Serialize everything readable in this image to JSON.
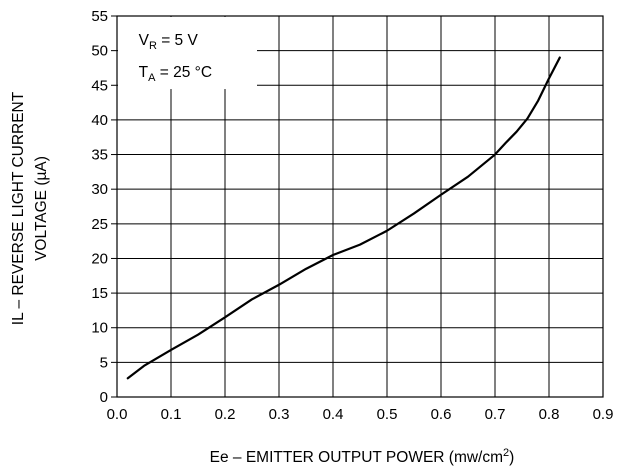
{
  "chart_data": {
    "type": "line",
    "xlabel": "Ee – EMITTER OUTPUT POWER (mw/cm",
    "xlabel_sup": "2",
    "xlabel_end": ")",
    "ylabel_line1": "IL – REVERSE LIGHT CURRENT",
    "ylabel_line2": "VOLTAGE (µA)",
    "xlim": [
      0,
      0.9
    ],
    "ylim": [
      0,
      55
    ],
    "x_ticks": [
      {
        "value": 0.0,
        "label": "0.0"
      },
      {
        "value": 0.1,
        "label": "0.1"
      },
      {
        "value": 0.2,
        "label": "0.2"
      },
      {
        "value": 0.3,
        "label": "0.3"
      },
      {
        "value": 0.4,
        "label": "0.4"
      },
      {
        "value": 0.5,
        "label": "0.5"
      },
      {
        "value": 0.6,
        "label": "0.6"
      },
      {
        "value": 0.7,
        "label": "0.7"
      },
      {
        "value": 0.8,
        "label": "0.8"
      },
      {
        "value": 0.9,
        "label": "0.9"
      }
    ],
    "y_ticks": [
      {
        "value": 0,
        "label": "0"
      },
      {
        "value": 5,
        "label": "5"
      },
      {
        "value": 10,
        "label": "10"
      },
      {
        "value": 15,
        "label": "15"
      },
      {
        "value": 20,
        "label": "20"
      },
      {
        "value": 25,
        "label": "25"
      },
      {
        "value": 30,
        "label": "30"
      },
      {
        "value": 35,
        "label": "35"
      },
      {
        "value": 40,
        "label": "40"
      },
      {
        "value": 45,
        "label": "45"
      },
      {
        "value": 50,
        "label": "50"
      },
      {
        "value": 55,
        "label": "55"
      }
    ],
    "grid": true,
    "annotations": [
      {
        "base": "V",
        "sub": "R",
        "rest": " = 5 V"
      },
      {
        "base": "T",
        "sub": "A",
        "rest": " = 25 °C"
      }
    ],
    "series": [
      {
        "x": [
          0.02,
          0.05,
          0.1,
          0.15,
          0.2,
          0.25,
          0.3,
          0.35,
          0.4,
          0.45,
          0.5,
          0.55,
          0.6,
          0.65,
          0.7,
          0.72,
          0.74,
          0.76,
          0.78,
          0.8,
          0.82
        ],
        "y": [
          2.7,
          4.5,
          6.8,
          9.0,
          11.5,
          14.1,
          16.2,
          18.5,
          20.5,
          22.0,
          24.0,
          26.5,
          29.2,
          31.8,
          35.0,
          36.7,
          38.3,
          40.2,
          42.8,
          46.0,
          49.0
        ],
        "color": "#000000"
      }
    ]
  }
}
